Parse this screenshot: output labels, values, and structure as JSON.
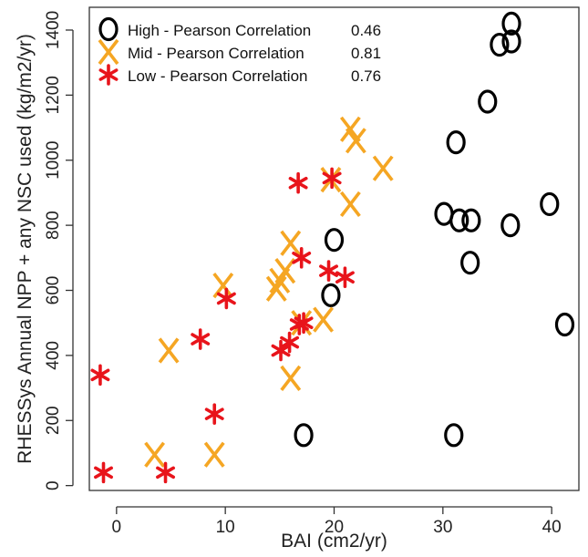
{
  "chart_data": {
    "type": "scatter",
    "xlabel": "BAI (cm2/yr)",
    "ylabel": "RHESSys Annual NPP + any NSC used (kg/m2/yr)",
    "xlim": [
      -2.5,
      42.5
    ],
    "ylim": [
      -15,
      1470
    ],
    "x_ticks": [
      0,
      10,
      20,
      30,
      40
    ],
    "y_ticks": [
      0,
      200,
      400,
      600,
      800,
      1000,
      1200,
      1400
    ],
    "x_tick_labels": [
      "0",
      "10",
      "20",
      "30",
      "40"
    ],
    "y_tick_labels": [
      "0",
      "200",
      "400",
      "600",
      "800",
      "1000",
      "1200",
      "1400"
    ],
    "grid": false,
    "legend_position": "top-left",
    "series": [
      {
        "name": "High",
        "legend_label": "High - Pearson Correlation",
        "correlation": "0.46",
        "marker": "O",
        "color": "#000000",
        "points": [
          [
            36.3,
            1420
          ],
          [
            35.2,
            1355
          ],
          [
            36.3,
            1365
          ],
          [
            34.1,
            1180
          ],
          [
            31.2,
            1055
          ],
          [
            39.8,
            865
          ],
          [
            30.1,
            835
          ],
          [
            31.5,
            815
          ],
          [
            32.6,
            815
          ],
          [
            36.2,
            800
          ],
          [
            20.0,
            755
          ],
          [
            32.5,
            685
          ],
          [
            19.7,
            585
          ],
          [
            41.2,
            495
          ],
          [
            17.2,
            155
          ],
          [
            31.0,
            155
          ]
        ]
      },
      {
        "name": "Mid",
        "legend_label": "Mid  - Pearson Correlation",
        "correlation": "0.81",
        "marker": "X",
        "color": "#f5a623",
        "points": [
          [
            21.5,
            1095
          ],
          [
            22.0,
            1060
          ],
          [
            24.5,
            975
          ],
          [
            19.7,
            940
          ],
          [
            21.5,
            865
          ],
          [
            16.0,
            745
          ],
          [
            15.5,
            660
          ],
          [
            15.0,
            630
          ],
          [
            9.8,
            615
          ],
          [
            14.7,
            605
          ],
          [
            17.0,
            500
          ],
          [
            19.0,
            510
          ],
          [
            4.8,
            415
          ],
          [
            16.0,
            330
          ],
          [
            3.5,
            95
          ],
          [
            9.0,
            95
          ]
        ]
      },
      {
        "name": "Low",
        "legend_label": "Low  - Pearson Correlation",
        "correlation": "0.76",
        "marker": "*",
        "color": "#e8141b",
        "points": [
          [
            19.8,
            945
          ],
          [
            16.7,
            930
          ],
          [
            17.0,
            700
          ],
          [
            19.5,
            660
          ],
          [
            21.0,
            640
          ],
          [
            10.1,
            575
          ],
          [
            17.2,
            500
          ],
          [
            16.8,
            495
          ],
          [
            7.7,
            450
          ],
          [
            15.9,
            440
          ],
          [
            15.1,
            415
          ],
          [
            -1.5,
            340
          ],
          [
            9.0,
            220
          ],
          [
            -1.2,
            40
          ],
          [
            4.5,
            40
          ]
        ]
      }
    ]
  }
}
